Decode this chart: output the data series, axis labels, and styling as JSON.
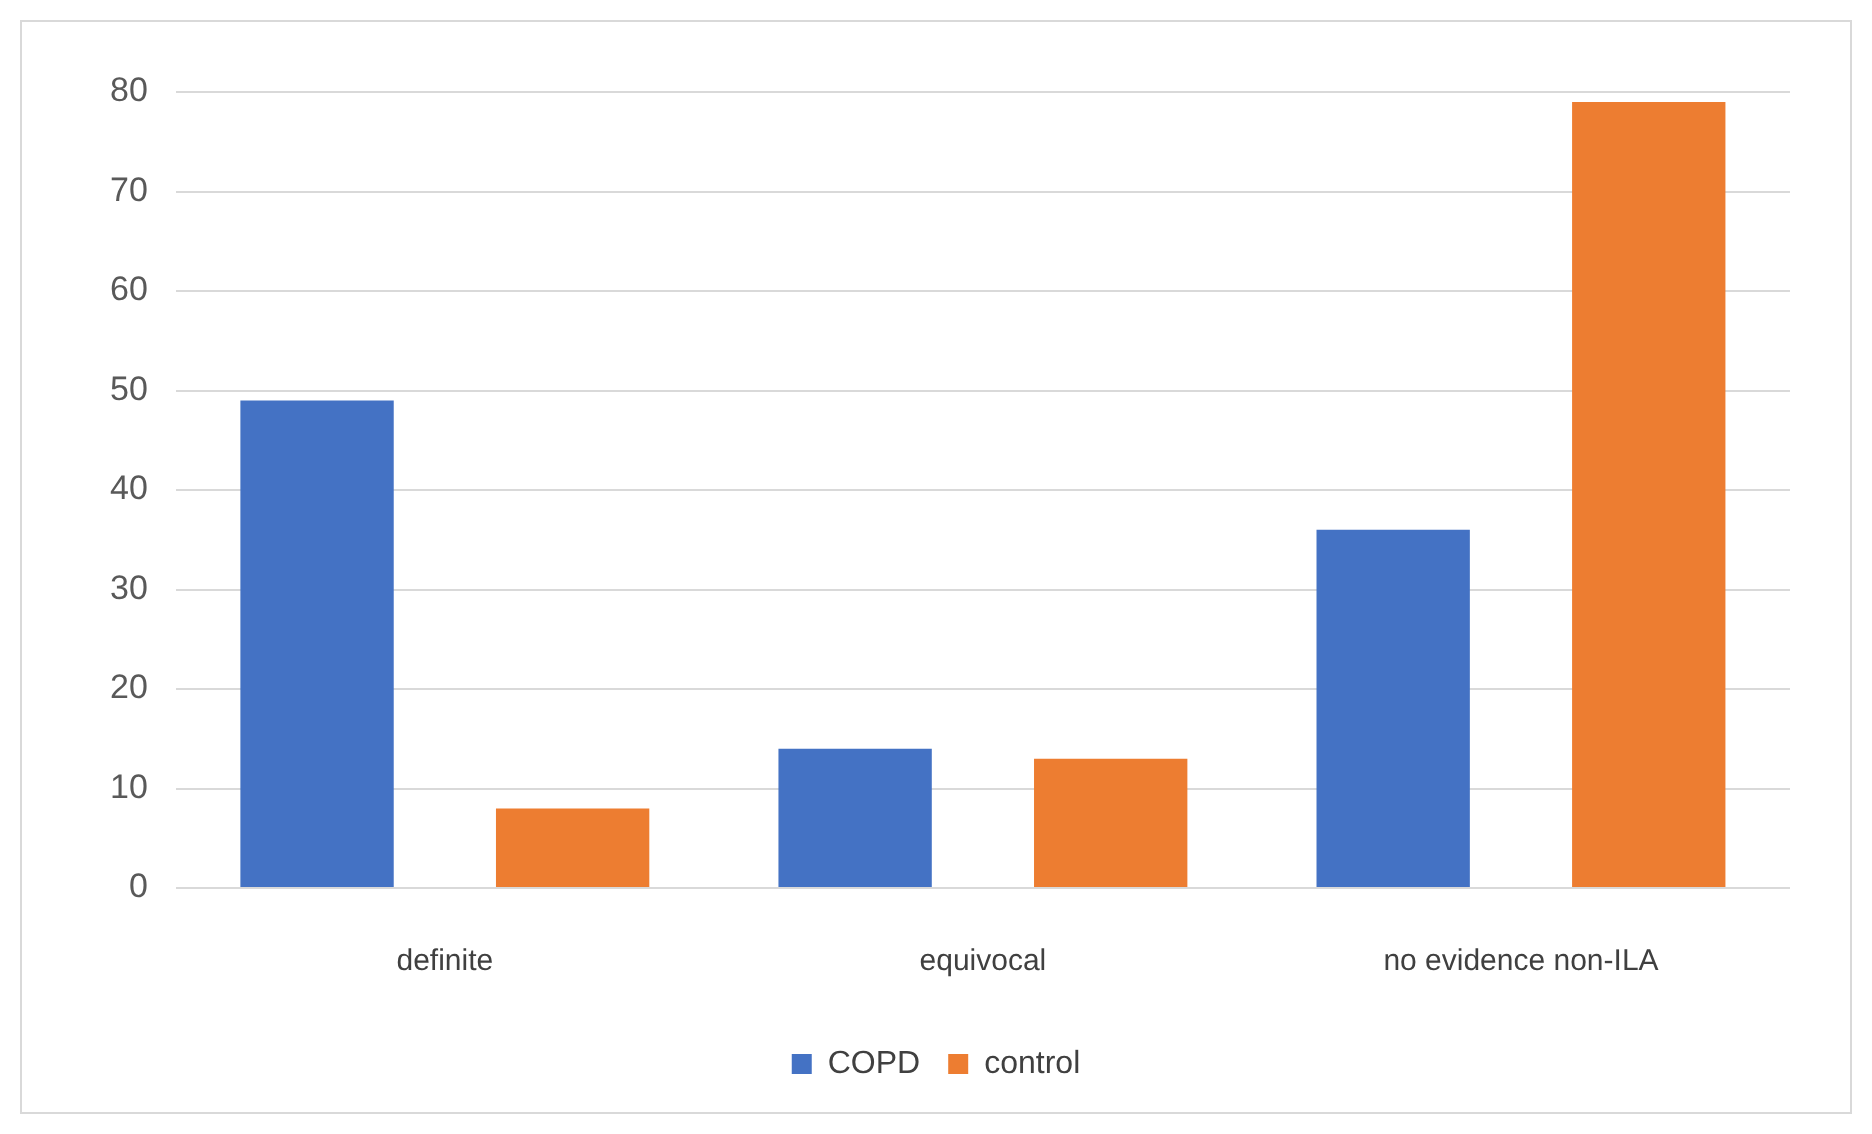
{
  "chart_data": {
    "type": "bar",
    "categories": [
      "definite",
      "equivocal",
      "no evidence non-ILA"
    ],
    "series": [
      {
        "name": "COPD",
        "color": "#4472c4",
        "values": [
          49,
          14,
          36
        ]
      },
      {
        "name": "control",
        "color": "#ed7d31",
        "values": [
          8,
          13,
          79
        ]
      }
    ],
    "ylim": [
      0,
      80
    ],
    "yticks": [
      0,
      10,
      20,
      30,
      40,
      50,
      60,
      70,
      80
    ],
    "grid": "y",
    "legend": "bottom"
  }
}
